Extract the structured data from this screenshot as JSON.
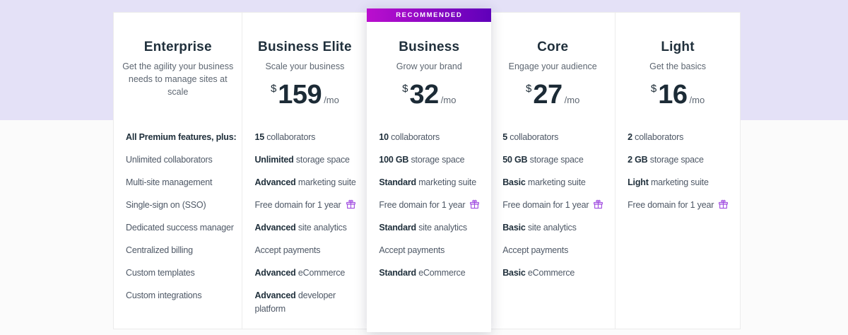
{
  "colors": {
    "hero_band": "#e4e1f7",
    "page_background": "#fbfbfb",
    "card_border": "#ececec",
    "heading_text": "#20303c",
    "body_text": "#5d6671",
    "badge_gradient_from": "#bb0fce",
    "badge_gradient_to": "#5f00ba",
    "gift_icon": "#a14ce0"
  },
  "badge": {
    "label": "RECOMMENDED"
  },
  "plans": [
    {
      "name": "Enterprise",
      "tagline": "Get the agility your business needs to manage sites at scale",
      "price": null,
      "features": [
        {
          "bold": "All Premium features, plus:",
          "text": ""
        },
        {
          "bold": "",
          "text": "Unlimited collaborators"
        },
        {
          "bold": "",
          "text": "Multi-site management"
        },
        {
          "bold": "",
          "text": "Single-sign on (SSO)"
        },
        {
          "bold": "",
          "text": "Dedicated success manager"
        },
        {
          "bold": "",
          "text": "Centralized billing"
        },
        {
          "bold": "",
          "text": "Custom templates"
        },
        {
          "bold": "",
          "text": "Custom integrations"
        }
      ]
    },
    {
      "name": "Business Elite",
      "tagline": "Scale your business",
      "price": {
        "currency": "$",
        "amount": "159",
        "period": "/mo"
      },
      "features": [
        {
          "bold": "15",
          "text": " collaborators"
        },
        {
          "bold": "Unlimited",
          "text": " storage space"
        },
        {
          "bold": "Advanced",
          "text": " marketing suite"
        },
        {
          "bold": "",
          "text": "Free domain for 1 year",
          "gift": true
        },
        {
          "bold": "Advanced",
          "text": " site analytics"
        },
        {
          "bold": "",
          "text": "Accept payments"
        },
        {
          "bold": "Advanced",
          "text": " eCommerce"
        },
        {
          "bold": "Advanced",
          "text": " developer platform"
        }
      ]
    },
    {
      "name": "Business",
      "tagline": "Grow your brand",
      "recommended": true,
      "price": {
        "currency": "$",
        "amount": "32",
        "period": "/mo"
      },
      "features": [
        {
          "bold": "10",
          "text": " collaborators"
        },
        {
          "bold": "100 GB",
          "text": " storage space"
        },
        {
          "bold": "Standard",
          "text": " marketing suite"
        },
        {
          "bold": "",
          "text": "Free domain for 1 year",
          "gift": true
        },
        {
          "bold": "Standard",
          "text": " site analytics"
        },
        {
          "bold": "",
          "text": "Accept payments"
        },
        {
          "bold": "Standard",
          "text": " eCommerce"
        }
      ]
    },
    {
      "name": "Core",
      "tagline": "Engage your audience",
      "price": {
        "currency": "$",
        "amount": "27",
        "period": "/mo"
      },
      "features": [
        {
          "bold": "5",
          "text": " collaborators"
        },
        {
          "bold": "50 GB",
          "text": " storage space"
        },
        {
          "bold": "Basic",
          "text": " marketing suite"
        },
        {
          "bold": "",
          "text": "Free domain for 1 year",
          "gift": true
        },
        {
          "bold": "Basic",
          "text": " site analytics"
        },
        {
          "bold": "",
          "text": "Accept payments"
        },
        {
          "bold": "Basic",
          "text": " eCommerce"
        }
      ]
    },
    {
      "name": "Light",
      "tagline": "Get the basics",
      "price": {
        "currency": "$",
        "amount": "16",
        "period": "/mo"
      },
      "features": [
        {
          "bold": "2",
          "text": " collaborators"
        },
        {
          "bold": "2 GB",
          "text": " storage space"
        },
        {
          "bold": "Light",
          "text": " marketing suite"
        },
        {
          "bold": "",
          "text": "Free domain for 1 year",
          "gift": true
        }
      ]
    }
  ]
}
